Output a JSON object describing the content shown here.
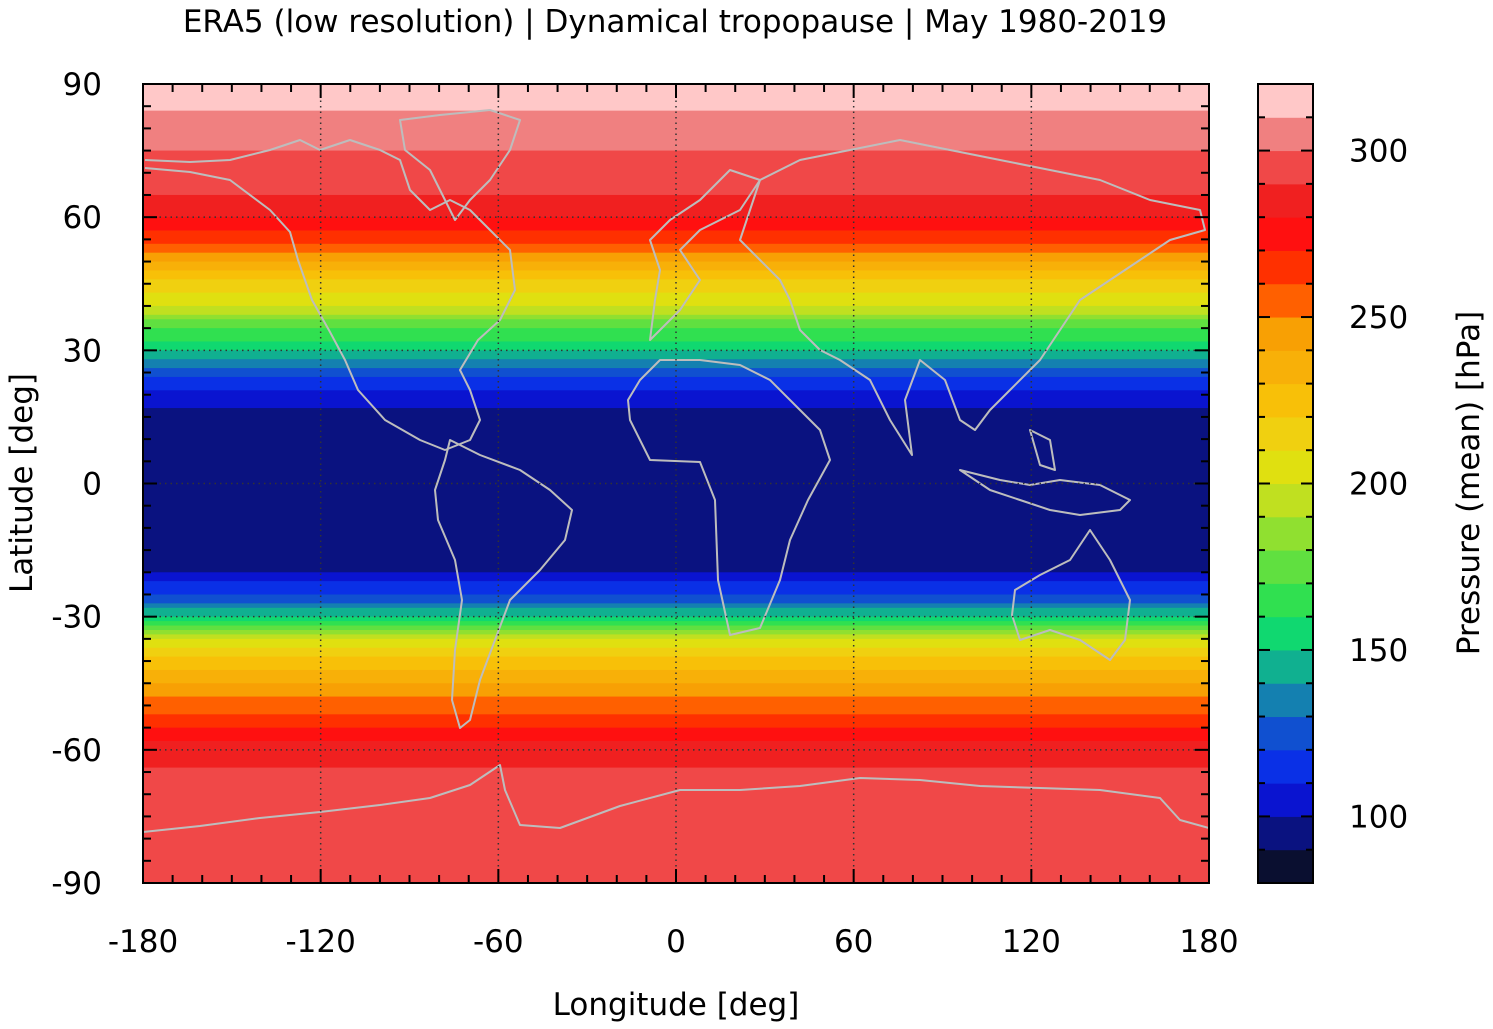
{
  "chart_data": {
    "type": "heatmap",
    "title": "ERA5 (low resolution) | Dynamical tropopause | May 1980-2019",
    "xlabel": "Longitude [deg]",
    "ylabel": "Latitude [deg]",
    "colorbar_label": "Pressure (mean) [hPa]",
    "xlim": [
      -180,
      180
    ],
    "ylim": [
      -90,
      90
    ],
    "x_ticks": [
      -180,
      -120,
      -60,
      0,
      60,
      120,
      180
    ],
    "x_tick_labels": [
      "-180",
      "-120",
      "-60",
      "0",
      "60",
      "120",
      "180"
    ],
    "y_ticks": [
      90,
      60,
      30,
      0,
      -30,
      -60,
      -90
    ],
    "y_tick_labels": [
      "90",
      "60",
      "30",
      "0",
      "-30",
      "-60",
      "-90"
    ],
    "colorbar_range": [
      80,
      320
    ],
    "colorbar_ticks": [
      300,
      250,
      200,
      150,
      100
    ],
    "colorbar_tick_labels": [
      "300",
      "250",
      "200",
      "150",
      "100"
    ],
    "colorbar_levels": [
      80,
      90,
      100,
      110,
      120,
      130,
      140,
      150,
      160,
      170,
      180,
      190,
      200,
      210,
      220,
      230,
      240,
      250,
      260,
      270,
      280,
      290,
      300,
      310,
      320
    ],
    "colorbar_colors": [
      "#0a0f30",
      "#0a1280",
      "#0a14d0",
      "#0a30e6",
      "#1050d0",
      "#1480b0",
      "#10b090",
      "#10d870",
      "#30e050",
      "#60e040",
      "#90e030",
      "#c0e020",
      "#e0e010",
      "#f0d010",
      "#f8c008",
      "#f8b008",
      "#f8a004",
      "#ff6000",
      "#ff3000",
      "#ff1010",
      "#f02020",
      "#f04848",
      "#f08080",
      "#ffc8c8"
    ],
    "grid": true,
    "coastlines": true,
    "zonal_mean_profile": {
      "lat": [
        90,
        85,
        80,
        75,
        70,
        65,
        60,
        55,
        50,
        45,
        40,
        35,
        30,
        25,
        20,
        15,
        10,
        5,
        0,
        -5,
        -10,
        -15,
        -20,
        -25,
        -30,
        -35,
        -40,
        -45,
        -50,
        -55,
        -60,
        -65,
        -70,
        -75,
        -80,
        -85,
        -90
      ],
      "pressure": [
        316,
        312,
        305,
        300,
        295,
        290,
        280,
        265,
        240,
        215,
        200,
        170,
        150,
        125,
        105,
        95,
        90,
        90,
        90,
        90,
        90,
        92,
        100,
        120,
        150,
        200,
        225,
        240,
        255,
        270,
        285,
        292,
        295,
        292,
        292,
        292,
        290
      ]
    }
  }
}
